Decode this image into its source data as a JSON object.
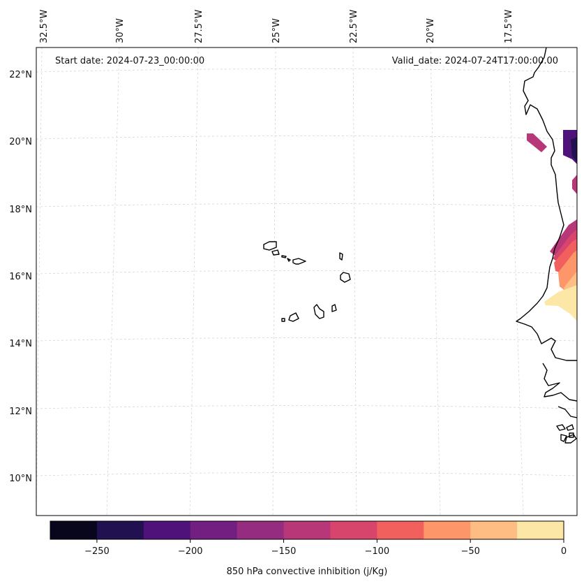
{
  "header": {
    "start_date": "Start date: 2024-07-23_00:00:00",
    "valid_date": "Valid_date: 2024-07-24T17:00:00.00"
  },
  "lon_labels": [
    "32.5°W",
    "30°W",
    "27.5°W",
    "25°W",
    "22.5°W",
    "20°W",
    "17.5°W"
  ],
  "lat_labels": [
    "22°N",
    "20°N",
    "18°N",
    "16°N",
    "14°N",
    "12°N",
    "10°N"
  ],
  "colorbar": {
    "label": "850 hPa convective inhibition (j/Kg)",
    "tick_labels": [
      "−250",
      "−200",
      "−150",
      "−100",
      "−50",
      "0"
    ],
    "range": [
      -275,
      0
    ],
    "step": 25,
    "colors": [
      "#07061c",
      "#221150",
      "#4f127b",
      "#721f81",
      "#952c80",
      "#b73779",
      "#d8456c",
      "#f1605d",
      "#fd9668",
      "#febd82",
      "#fde7a7"
    ]
  },
  "colors": {
    "coastline": "#000000",
    "gridline": "#d6d6d6",
    "frame": "#000000"
  }
}
